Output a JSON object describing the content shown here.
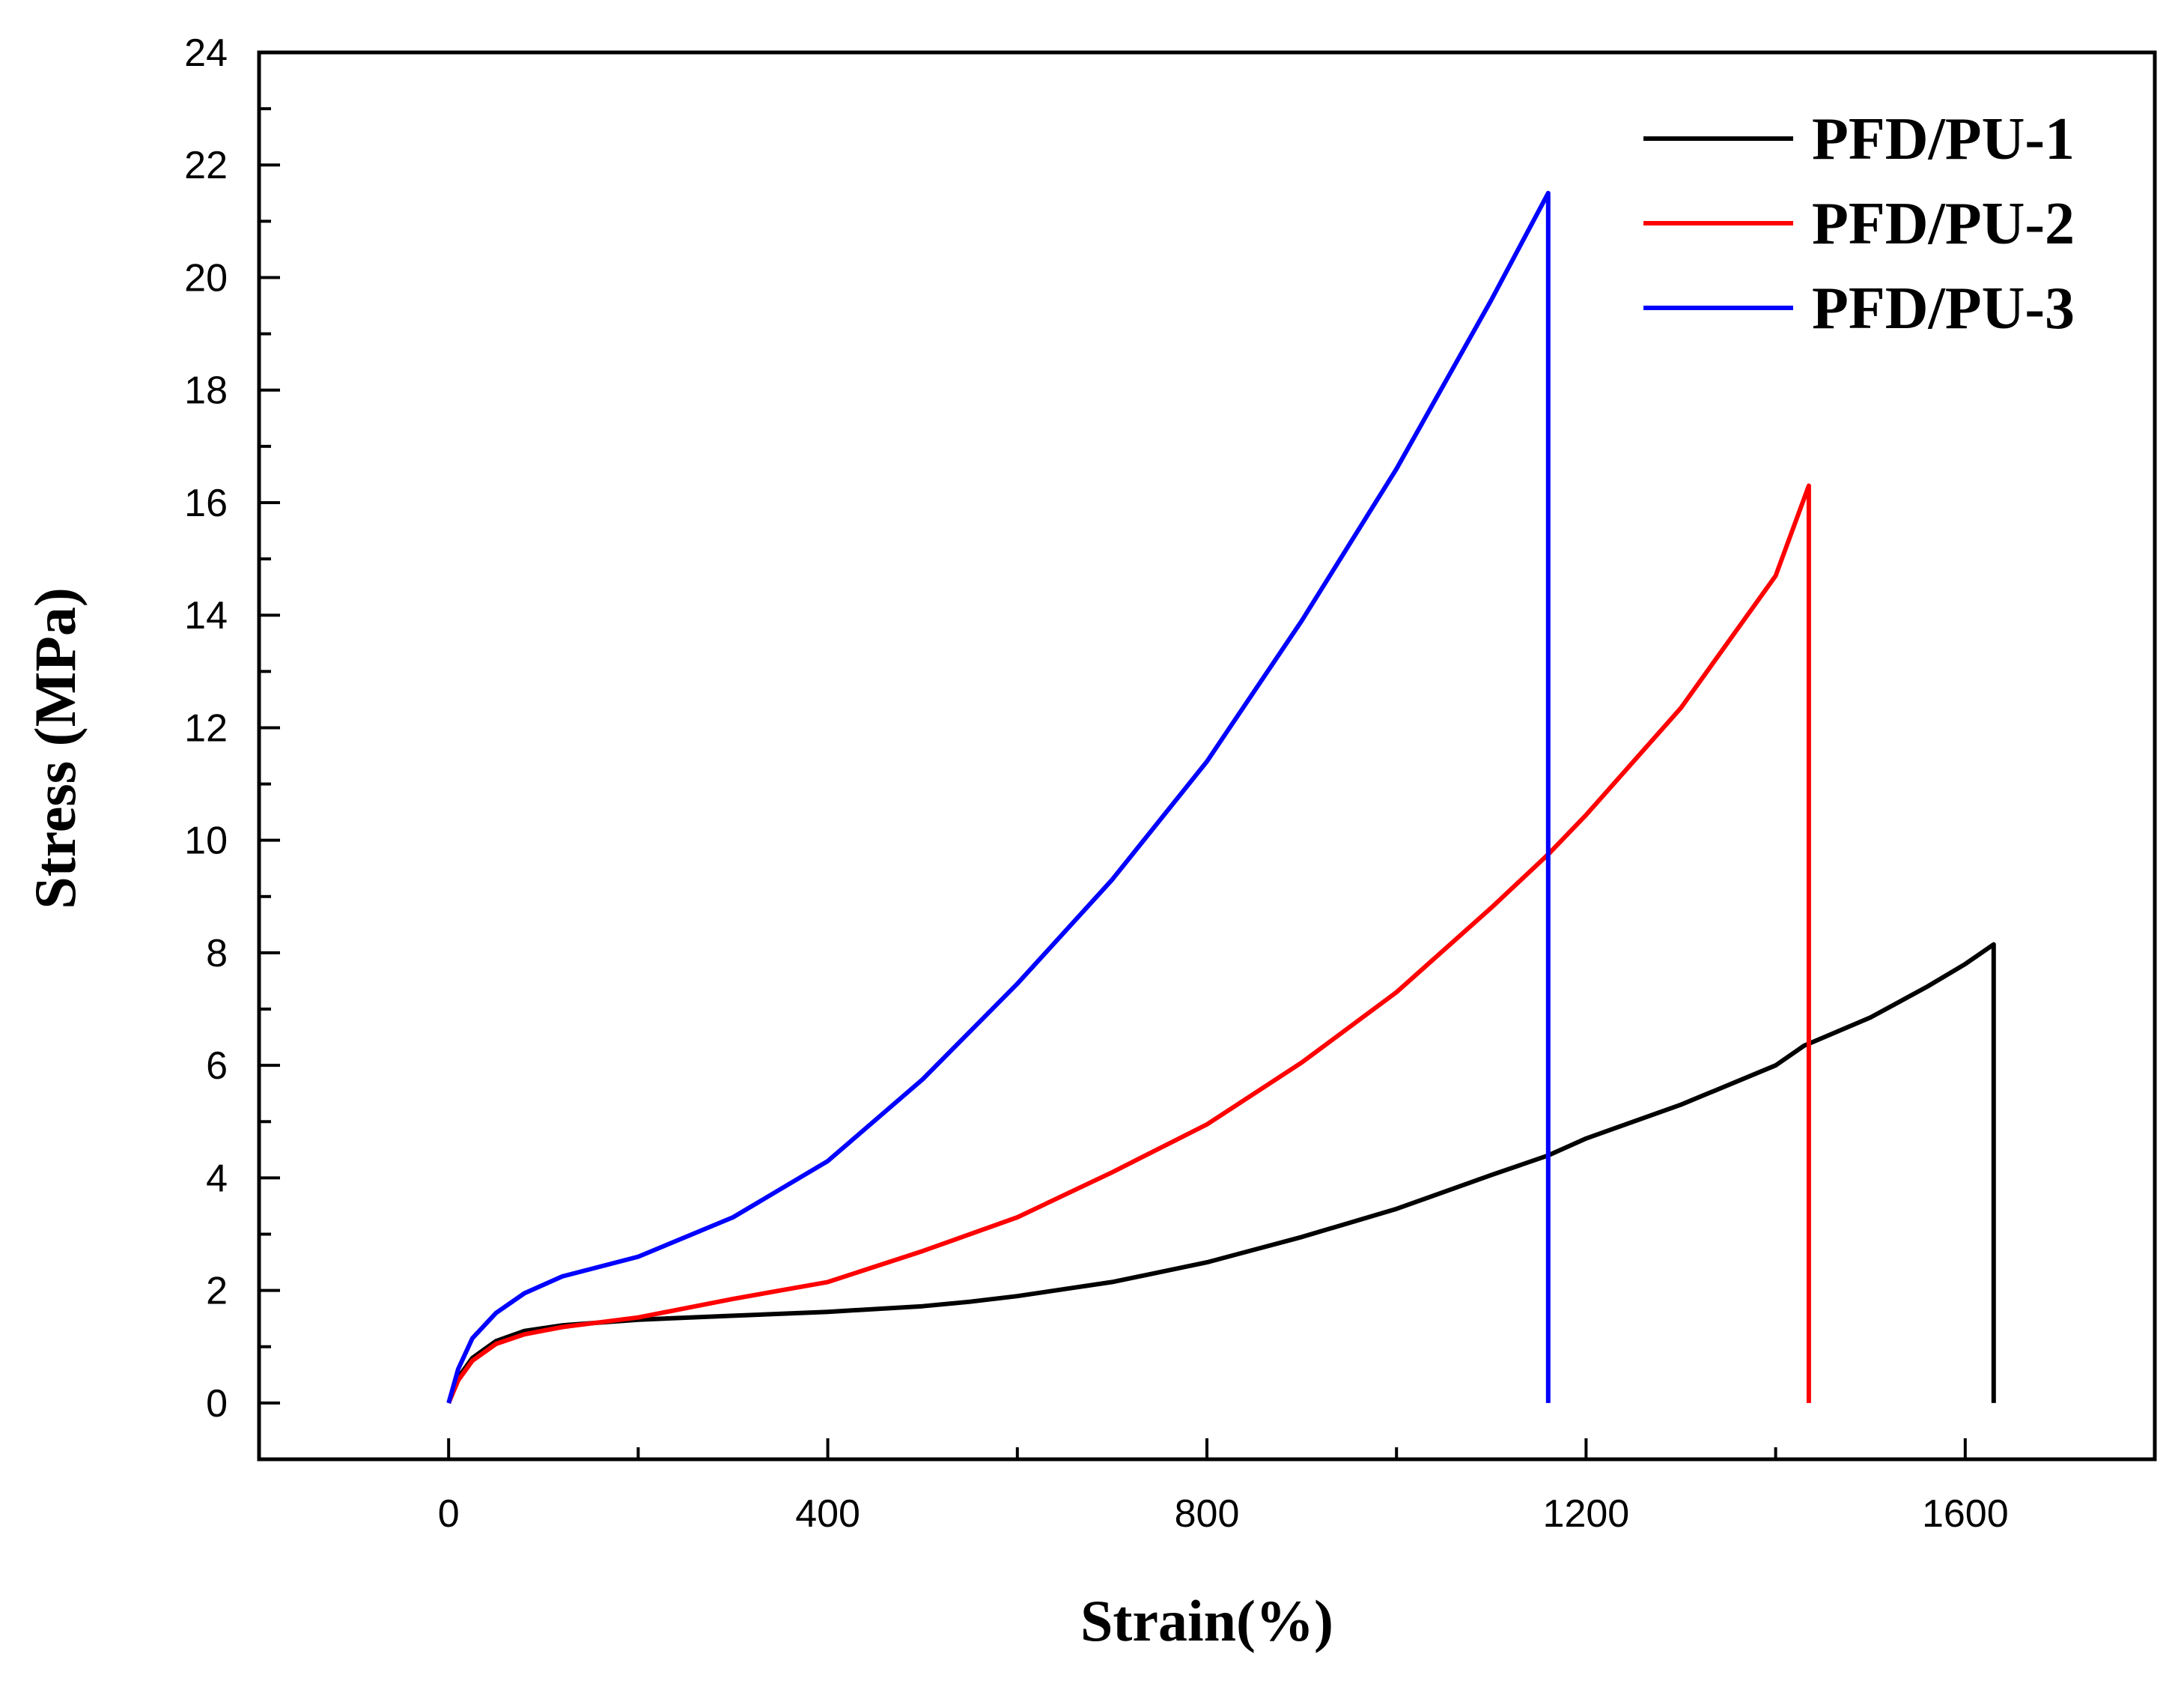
{
  "chart_data": {
    "type": "line",
    "title": "",
    "xlabel": "Strain(%)",
    "ylabel": "Stress (MPa)",
    "xlim": [
      -200,
      1800
    ],
    "ylim": [
      -1,
      24
    ],
    "x_ticks": [
      0,
      400,
      800,
      1200,
      1600
    ],
    "x_tick_labels": [
      "0",
      "400",
      "800",
      "1200",
      "1600"
    ],
    "y_ticks": [
      0,
      2,
      4,
      6,
      8,
      10,
      12,
      14,
      16,
      18,
      20,
      22,
      24
    ],
    "y_tick_labels": [
      "0",
      "2",
      "4",
      "6",
      "8",
      "10",
      "12",
      "14",
      "16",
      "18",
      "20",
      "22",
      "24"
    ],
    "grid": false,
    "legend_position": "top-right",
    "series": [
      {
        "name": "PFD/PU-1",
        "color": "#000000",
        "x": [
          0,
          10,
          25,
          50,
          80,
          120,
          200,
          300,
          400,
          500,
          550,
          600,
          700,
          800,
          900,
          1000,
          1100,
          1160,
          1200,
          1300,
          1400,
          1430,
          1500,
          1560,
          1600,
          1630,
          1630
        ],
        "y": [
          0,
          0.45,
          0.8,
          1.1,
          1.28,
          1.38,
          1.48,
          1.55,
          1.62,
          1.72,
          1.8,
          1.9,
          2.15,
          2.5,
          2.95,
          3.45,
          4.05,
          4.4,
          4.7,
          5.3,
          6.0,
          6.35,
          6.85,
          7.4,
          7.8,
          8.15,
          0
        ]
      },
      {
        "name": "PFD/PU-2",
        "color": "#ff0000",
        "x": [
          0,
          10,
          25,
          50,
          80,
          120,
          200,
          300,
          400,
          500,
          600,
          700,
          800,
          900,
          1000,
          1100,
          1160,
          1200,
          1300,
          1400,
          1435,
          1435
        ],
        "y": [
          0,
          0.4,
          0.75,
          1.05,
          1.22,
          1.35,
          1.52,
          1.85,
          2.15,
          2.7,
          3.3,
          4.1,
          4.95,
          6.05,
          7.3,
          8.8,
          9.75,
          10.45,
          12.35,
          14.7,
          16.3,
          0
        ]
      },
      {
        "name": "PFD/PU-3",
        "color": "#0000ff",
        "x": [
          0,
          10,
          25,
          50,
          80,
          120,
          200,
          300,
          400,
          500,
          600,
          700,
          800,
          900,
          1000,
          1100,
          1160,
          1160
        ],
        "y": [
          0,
          0.6,
          1.15,
          1.6,
          1.95,
          2.25,
          2.6,
          3.3,
          4.3,
          5.75,
          7.45,
          9.3,
          11.4,
          13.9,
          16.6,
          19.6,
          21.5,
          0
        ]
      }
    ]
  }
}
